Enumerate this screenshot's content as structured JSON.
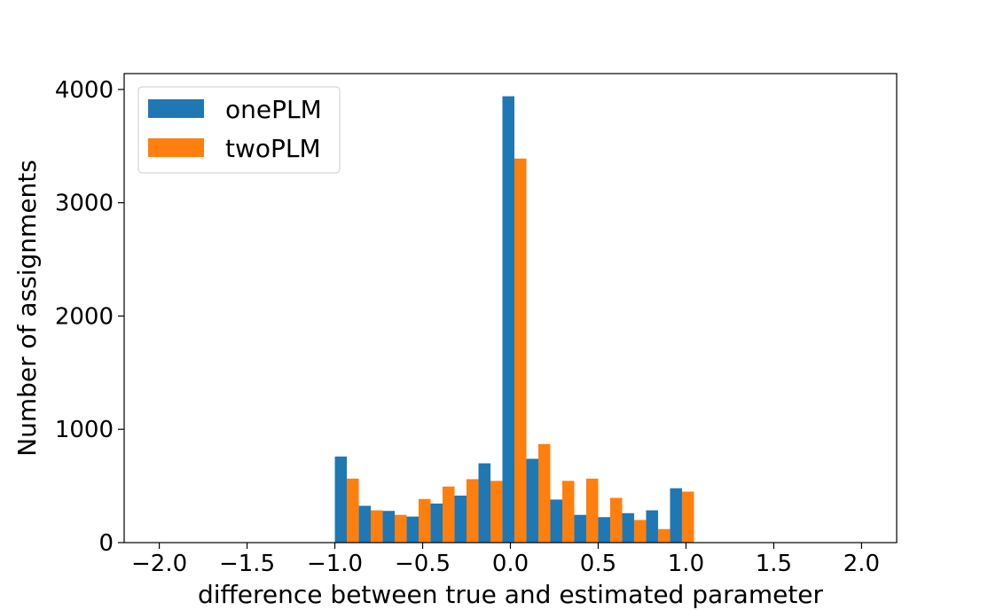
{
  "chart_data": {
    "type": "bar",
    "title": "",
    "xlabel": "difference between true and estimated parameter",
    "ylabel": "Number of assignments",
    "xlim": [
      -2.2,
      2.2
    ],
    "ylim": [
      0,
      4140
    ],
    "xticks": [
      -2.0,
      -1.5,
      -1.0,
      -0.5,
      0.0,
      0.5,
      1.0,
      1.5,
      2.0
    ],
    "xtick_labels": [
      "−2.0",
      "−1.5",
      "−1.0",
      "−0.5",
      "0.0",
      "0.5",
      "1.0",
      "1.5",
      "2.0"
    ],
    "yticks": [
      0,
      1000,
      2000,
      3000,
      4000
    ],
    "ytick_labels": [
      "0",
      "1000",
      "2000",
      "3000",
      "4000"
    ],
    "bin_edges": [
      -1.0,
      -0.8636,
      -0.7273,
      -0.5909,
      -0.4545,
      -0.3182,
      -0.1818,
      -0.0455,
      0.0909,
      0.2273,
      0.3636,
      0.5,
      0.6364,
      0.7727,
      0.9091,
      1.0455
    ],
    "series": [
      {
        "name": "onePLM",
        "color": "#1f77b4",
        "values": [
          760,
          325,
          280,
          230,
          345,
          415,
          700,
          3940,
          740,
          380,
          245,
          225,
          260,
          285,
          480
        ]
      },
      {
        "name": "twoPLM",
        "color": "#ff7f0e",
        "values": [
          565,
          285,
          245,
          385,
          495,
          560,
          545,
          3390,
          870,
          545,
          565,
          395,
          200,
          120,
          450
        ]
      }
    ],
    "legend_position": "top-left",
    "grid": false
  }
}
